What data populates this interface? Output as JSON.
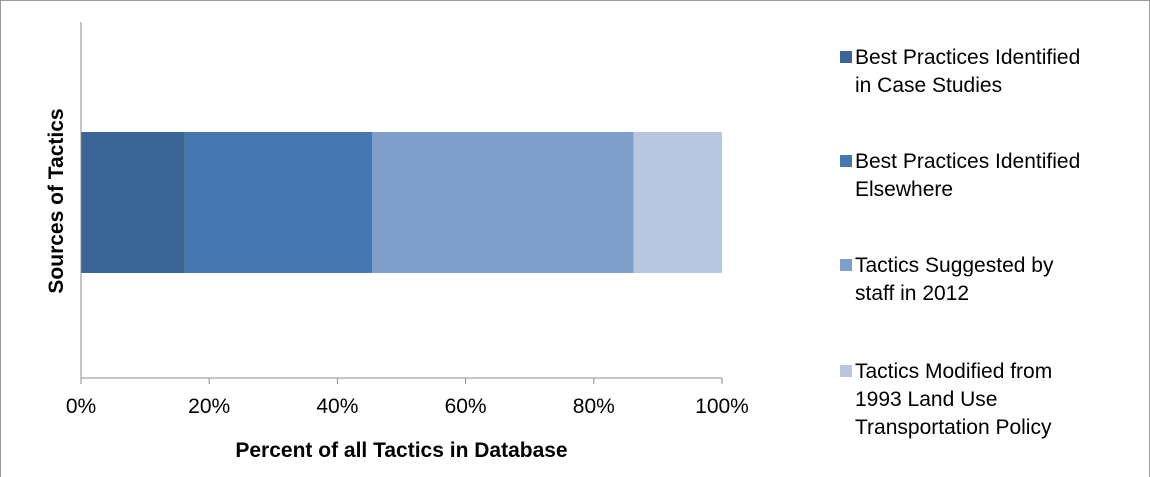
{
  "chart_data": {
    "type": "bar",
    "orientation": "horizontal",
    "stacked": true,
    "percent_stacked": true,
    "categories": [
      ""
    ],
    "series": [
      {
        "name": "Best Practices Identified in Case Studies",
        "values": [
          16.2
        ],
        "color": "#3b6595"
      },
      {
        "name": "Best Practices Identified Elsewhere",
        "values": [
          29.2
        ],
        "color": "#4677b0"
      },
      {
        "name": "Tactics Suggested by staff in 2012",
        "values": [
          40.8
        ],
        "color": "#7f9ec9"
      },
      {
        "name": "Tactics Modified from 1993 Land Use Transportation Policy",
        "values": [
          13.8
        ],
        "color": "#b8c6e0"
      }
    ],
    "xlabel": "Percent of all Tactics in Database",
    "ylabel": "Sources of Tactics",
    "xlim": [
      0,
      100
    ],
    "xticks": [
      "0%",
      "20%",
      "40%",
      "60%",
      "80%",
      "100%"
    ],
    "grid": false,
    "legend_position": "right"
  },
  "legend": {
    "items": [
      {
        "label": "Best Practices Identified\nin Case Studies"
      },
      {
        "label": "Best Practices Identified\nElsewhere"
      },
      {
        "label": "Tactics Suggested by\nstaff in 2012"
      },
      {
        "label": "Tactics Modified from\n1993 Land Use\nTransportation Policy"
      }
    ]
  }
}
